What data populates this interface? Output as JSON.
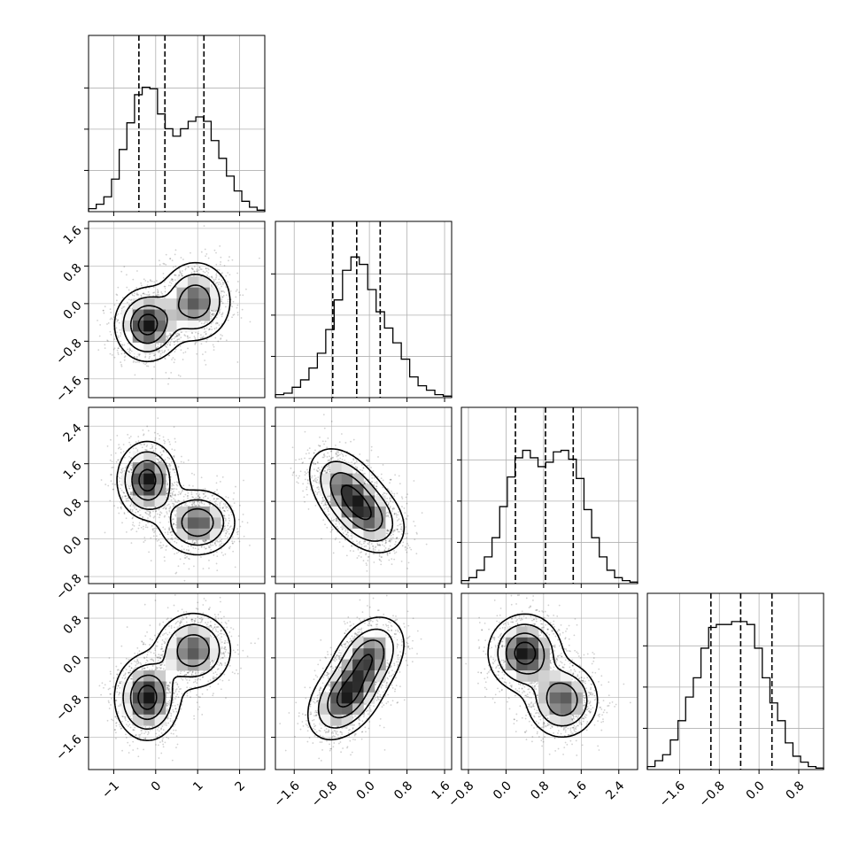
{
  "chart_data": {
    "type": "corner",
    "description_free": true,
    "variables": [
      {
        "range": [
          -1.6,
          2.6
        ],
        "ticks": [
          -1,
          0,
          1,
          2
        ],
        "tick_labels": [
          "−1",
          "0",
          "1",
          "2"
        ],
        "quantiles": [
          -0.4,
          0.22,
          1.15
        ],
        "hist": [
          0.02,
          0.05,
          0.1,
          0.22,
          0.42,
          0.6,
          0.79,
          0.84,
          0.83,
          0.66,
          0.56,
          0.51,
          0.56,
          0.61,
          0.64,
          0.61,
          0.48,
          0.36,
          0.24,
          0.14,
          0.07,
          0.03,
          0.01
        ]
      },
      {
        "range": [
          -2.0,
          1.75
        ],
        "ticks": [
          -1.6,
          -0.8,
          0.0,
          0.8,
          1.6
        ],
        "tick_labels": [
          "−1.6",
          "−0.8",
          "0.0",
          "0.8",
          "1.6"
        ],
        "quantiles": [
          -0.78,
          -0.27,
          0.23
        ],
        "hist": [
          0.02,
          0.03,
          0.07,
          0.12,
          0.2,
          0.3,
          0.46,
          0.66,
          0.86,
          0.95,
          0.9,
          0.73,
          0.58,
          0.47,
          0.37,
          0.26,
          0.14,
          0.08,
          0.05,
          0.02,
          0.01
        ]
      },
      {
        "range": [
          -0.95,
          2.8
        ],
        "ticks": [
          -0.8,
          0.0,
          0.8,
          1.6,
          2.4
        ],
        "tick_labels": [
          "−0.8",
          "0.0",
          "0.8",
          "1.6",
          "2.4"
        ],
        "quantiles": [
          0.2,
          0.84,
          1.43
        ],
        "hist": [
          0.02,
          0.04,
          0.09,
          0.18,
          0.31,
          0.52,
          0.72,
          0.85,
          0.9,
          0.85,
          0.79,
          0.82,
          0.89,
          0.9,
          0.84,
          0.71,
          0.5,
          0.31,
          0.18,
          0.09,
          0.04,
          0.02,
          0.01
        ]
      },
      {
        "range": [
          -2.25,
          1.3
        ],
        "ticks": [
          -1.6,
          -0.8,
          0.0,
          0.8
        ],
        "tick_labels": [
          "−1.6",
          "−0.8",
          "0.0",
          "0.8"
        ],
        "quantiles": [
          -0.97,
          -0.37,
          0.26
        ],
        "hist": [
          0.02,
          0.06,
          0.1,
          0.2,
          0.33,
          0.49,
          0.62,
          0.82,
          0.96,
          0.98,
          0.98,
          1.0,
          1.0,
          0.98,
          0.82,
          0.62,
          0.45,
          0.33,
          0.18,
          0.09,
          0.05,
          0.02,
          0.01
        ]
      }
    ],
    "panels": [
      {
        "pair": [
          0,
          1
        ],
        "yticks": [
          -1.6,
          -0.8,
          0.0,
          0.8,
          1.6
        ],
        "ytick_labels": [
          "−1.6",
          "−0.8",
          "0.0",
          "0.8",
          "1.6"
        ],
        "modes": [
          {
            "cx": -0.2,
            "cy": -0.45,
            "sx": 0.38,
            "sy": 0.38,
            "r": 0.0,
            "w": 0.55
          },
          {
            "cx": 0.95,
            "cy": 0.05,
            "sx": 0.42,
            "sy": 0.42,
            "r": 0.0,
            "w": 0.45
          }
        ]
      },
      {
        "pair": [
          0,
          2
        ],
        "yticks": [
          -0.8,
          0.0,
          0.8,
          1.6,
          2.4
        ],
        "ytick_labels": [
          "−0.8",
          "0.0",
          "0.8",
          "1.6",
          "2.4"
        ],
        "modes": [
          {
            "cx": -0.2,
            "cy": 1.25,
            "sx": 0.35,
            "sy": 0.4,
            "r": 0.0,
            "w": 0.55
          },
          {
            "cx": 1.0,
            "cy": 0.35,
            "sx": 0.45,
            "sy": 0.35,
            "r": 0.0,
            "w": 0.45
          }
        ]
      },
      {
        "pair": [
          1,
          2
        ],
        "yticks": [
          -0.8,
          0.0,
          0.8,
          1.6,
          2.4
        ],
        "ytick_labels": [
          "−0.8",
          "0.0",
          "0.8",
          "1.6",
          "2.4"
        ],
        "modes": [
          {
            "cx": -0.5,
            "cy": 1.05,
            "sx": 0.4,
            "sy": 0.45,
            "r": -0.4,
            "w": 0.55
          },
          {
            "cx": 0.0,
            "cy": 0.45,
            "sx": 0.4,
            "sy": 0.4,
            "r": -0.3,
            "w": 0.45
          }
        ]
      },
      {
        "pair": [
          0,
          3
        ],
        "yticks": [
          -1.6,
          -0.8,
          0.0,
          0.8
        ],
        "ytick_labels": [
          "−1.6",
          "−0.8",
          "0.0",
          "0.8"
        ],
        "modes": [
          {
            "cx": -0.2,
            "cy": -0.8,
            "sx": 0.38,
            "sy": 0.42,
            "r": 0.0,
            "w": 0.55
          },
          {
            "cx": 0.9,
            "cy": 0.15,
            "sx": 0.45,
            "sy": 0.38,
            "r": 0.0,
            "w": 0.45
          }
        ]
      },
      {
        "pair": [
          1,
          3
        ],
        "yticks": [
          -1.6,
          -0.8,
          0.0,
          0.8
        ],
        "ytick_labels": [
          "−1.6",
          "−0.8",
          "0.0",
          "0.8"
        ],
        "modes": [
          {
            "cx": -0.5,
            "cy": -0.8,
            "sx": 0.4,
            "sy": 0.42,
            "r": 0.4,
            "w": 0.55
          },
          {
            "cx": 0.0,
            "cy": 0.05,
            "sx": 0.38,
            "sy": 0.4,
            "r": 0.3,
            "w": 0.45
          }
        ]
      },
      {
        "pair": [
          2,
          3
        ],
        "yticks": [
          -1.6,
          -0.8,
          0.0,
          0.8
        ],
        "ytick_labels": [
          "−1.6",
          "−0.8",
          "0.0",
          "0.8"
        ],
        "modes": [
          {
            "cx": 0.4,
            "cy": 0.1,
            "sx": 0.38,
            "sy": 0.38,
            "r": 0.0,
            "w": 0.55
          },
          {
            "cx": 1.2,
            "cy": -0.85,
            "sx": 0.38,
            "sy": 0.38,
            "r": 0.0,
            "w": 0.45
          }
        ]
      }
    ],
    "contour_levels": [
      0.5,
      1.0,
      1.5,
      2.0
    ],
    "grid": true,
    "colors": {
      "line": "#000000",
      "grid": "#b0b0b0",
      "scatter": "#000000"
    }
  }
}
